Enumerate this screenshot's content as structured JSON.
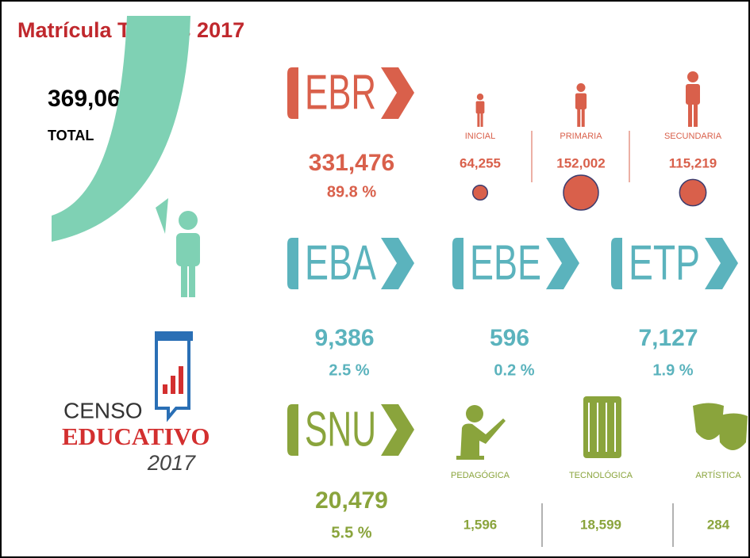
{
  "title": "Matrícula Totales 2017",
  "total": {
    "value": "369,064",
    "label": "TOTAL"
  },
  "logo": {
    "line1": "CENSO",
    "line2": "EDUCATIVO",
    "line3": "2017"
  },
  "ebr": {
    "name": "EBR",
    "value": "331,476",
    "percent": "89.8 %",
    "color": "#d9604b",
    "levels": [
      {
        "name": "INICIAL",
        "value": 64255,
        "label": "64,255"
      },
      {
        "name": "PRIMARIA",
        "value": 152002,
        "label": "152,002"
      },
      {
        "name": "SECUNDARIA",
        "value": 115219,
        "label": "115,219"
      }
    ]
  },
  "others": {
    "color": "#5bb3bd",
    "items": [
      {
        "name": "EBA",
        "value": "9,386",
        "percent": "2.5 %"
      },
      {
        "name": "EBE",
        "value": "596",
        "percent": "0.2 %"
      },
      {
        "name": "ETP",
        "value": "7,127",
        "percent": "1.9 %"
      }
    ]
  },
  "snu": {
    "name": "SNU",
    "value": "20,479",
    "percent": "5.5 %",
    "color": "#8aa43c",
    "areas": [
      {
        "name": "PEDAGÓGICA",
        "value": "1,596"
      },
      {
        "name": "TECNOLÓGICA",
        "value": "18,599"
      },
      {
        "name": "ARTÍSTICA",
        "value": "284"
      }
    ]
  }
}
